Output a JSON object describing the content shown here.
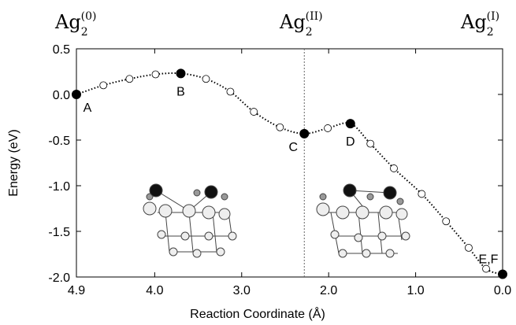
{
  "chart_data": {
    "type": "line",
    "xlabel": "Reaction Coordinate (Å)",
    "ylabel": "Energy (eV)",
    "top_labels": [
      {
        "base": "Ag",
        "sub": "2",
        "sup": "(0)"
      },
      {
        "base": "Ag",
        "sub": "2",
        "sup": "(II)"
      },
      {
        "base": "Ag",
        "sub": "2",
        "sup": "(I)"
      }
    ],
    "x": [
      4.9,
      4.59,
      4.29,
      3.99,
      3.7,
      3.41,
      3.13,
      2.86,
      2.56,
      2.28,
      2.01,
      1.75,
      1.52,
      1.25,
      0.93,
      0.65,
      0.39,
      0.19,
      0.0
    ],
    "values": [
      0.0,
      0.1,
      0.17,
      0.22,
      0.23,
      0.17,
      0.03,
      -0.19,
      -0.36,
      -0.43,
      -0.37,
      -0.32,
      -0.54,
      -0.81,
      -1.09,
      -1.39,
      -1.68,
      -1.91,
      -1.97
    ],
    "filled": [
      true,
      false,
      false,
      false,
      true,
      false,
      false,
      false,
      false,
      true,
      false,
      true,
      false,
      false,
      false,
      false,
      false,
      false,
      true
    ],
    "point_labels": [
      "A",
      null,
      null,
      null,
      "B",
      null,
      null,
      null,
      null,
      "C",
      null,
      "D",
      null,
      null,
      null,
      null,
      null,
      null,
      "E,F"
    ],
    "color": "#000000",
    "xlim": [
      4.9,
      0.0
    ],
    "ylim": [
      -2.0,
      0.5
    ],
    "xticks": [
      4.9,
      {
        "value": 4.0,
        "label": "4.0"
      },
      {
        "value": 3.0,
        "label": "3.0"
      },
      {
        "value": 2.0,
        "label": "2.0"
      },
      {
        "value": 1.0,
        "label": "1.0"
      },
      {
        "value": 0.0,
        "label": "0.0"
      }
    ],
    "yticks": [
      0.5,
      {
        "value": 0.0,
        "label": "0.0"
      },
      -0.5,
      {
        "value": -1.0,
        "label": "-1.0"
      },
      -1.5,
      {
        "value": -2.0,
        "label": "-2.0"
      }
    ],
    "vline": 2.28
  }
}
